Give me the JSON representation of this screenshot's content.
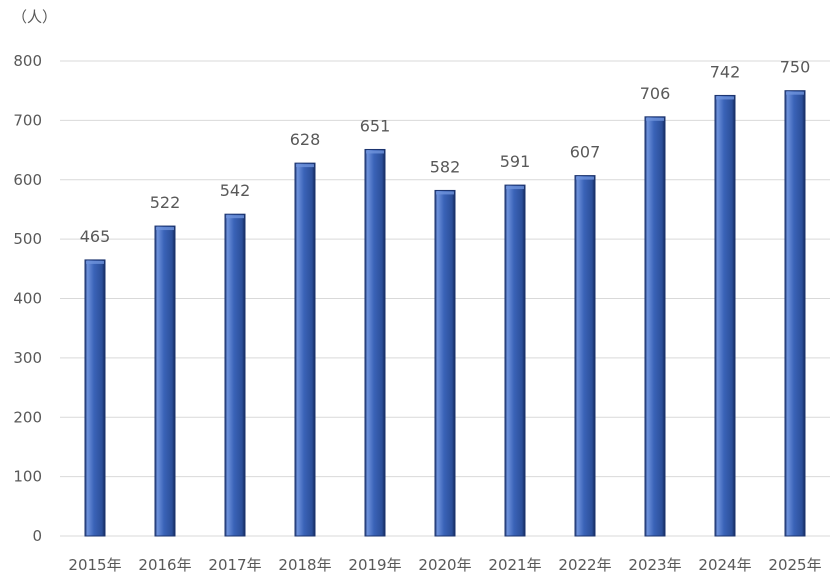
{
  "chart_data": {
    "type": "bar",
    "unit_label": "（人）",
    "categories": [
      "2015年",
      "2016年",
      "2017年",
      "2018年",
      "2019年",
      "2020年",
      "2021年",
      "2022年",
      "2023年",
      "2024年",
      "2025年"
    ],
    "values": [
      465,
      522,
      542,
      628,
      651,
      582,
      591,
      607,
      706,
      742,
      750
    ],
    "ylim": [
      0,
      800
    ],
    "yticks": [
      0,
      100,
      200,
      300,
      400,
      500,
      600,
      700,
      800
    ],
    "grid": true,
    "legend": "none",
    "bar_color": "#3a63b8",
    "bar_dark": "#1b336e",
    "bar_light": "#6f93dc",
    "text_color": "#595959",
    "grid_color": "#d9d9d9"
  }
}
